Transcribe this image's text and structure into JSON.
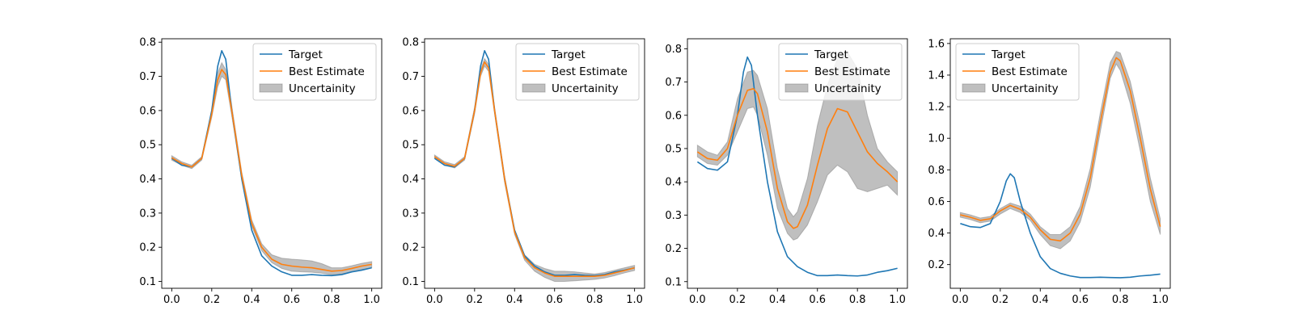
{
  "chart_data": [
    {
      "type": "line",
      "xlim": [
        -0.05,
        1.05
      ],
      "ylim": [
        0.08,
        0.81
      ],
      "xticks": [
        "0.0",
        "0.2",
        "0.4",
        "0.6",
        "0.8",
        "1.0"
      ],
      "yticks": [
        "0.1",
        "0.2",
        "0.3",
        "0.4",
        "0.5",
        "0.6",
        "0.7",
        "0.8"
      ],
      "legend": {
        "placement": "top-right",
        "entries": [
          "Target",
          "Best Estimate",
          "Uncertainity"
        ]
      },
      "series": [
        {
          "name": "Target",
          "color": "#1f77b4",
          "x": [
            0.0,
            0.05,
            0.1,
            0.15,
            0.2,
            0.23,
            0.25,
            0.27,
            0.3,
            0.35,
            0.4,
            0.45,
            0.5,
            0.55,
            0.6,
            0.65,
            0.7,
            0.75,
            0.8,
            0.85,
            0.9,
            0.95,
            1.0
          ],
          "y": [
            0.46,
            0.44,
            0.435,
            0.46,
            0.6,
            0.73,
            0.775,
            0.75,
            0.6,
            0.4,
            0.25,
            0.175,
            0.145,
            0.128,
            0.118,
            0.118,
            0.12,
            0.118,
            0.117,
            0.12,
            0.128,
            0.133,
            0.14
          ]
        },
        {
          "name": "Best Estimate",
          "color": "#ff7f0e",
          "x": [
            0.0,
            0.05,
            0.1,
            0.15,
            0.2,
            0.23,
            0.25,
            0.27,
            0.3,
            0.35,
            0.4,
            0.45,
            0.5,
            0.55,
            0.6,
            0.65,
            0.7,
            0.75,
            0.8,
            0.85,
            0.9,
            0.95,
            1.0
          ],
          "y": [
            0.462,
            0.445,
            0.435,
            0.46,
            0.59,
            0.69,
            0.72,
            0.705,
            0.6,
            0.41,
            0.27,
            0.2,
            0.165,
            0.15,
            0.145,
            0.142,
            0.14,
            0.135,
            0.13,
            0.132,
            0.138,
            0.145,
            0.15
          ],
          "lower": [
            0.455,
            0.44,
            0.43,
            0.455,
            0.58,
            0.67,
            0.7,
            0.69,
            0.585,
            0.4,
            0.262,
            0.19,
            0.155,
            0.138,
            0.13,
            0.128,
            0.127,
            0.124,
            0.12,
            0.122,
            0.128,
            0.135,
            0.14
          ],
          "upper": [
            0.468,
            0.45,
            0.44,
            0.465,
            0.6,
            0.71,
            0.74,
            0.72,
            0.615,
            0.42,
            0.28,
            0.21,
            0.178,
            0.168,
            0.165,
            0.163,
            0.16,
            0.152,
            0.14,
            0.14,
            0.146,
            0.153,
            0.158
          ]
        }
      ]
    },
    {
      "type": "line",
      "xlim": [
        -0.05,
        1.05
      ],
      "ylim": [
        0.08,
        0.81
      ],
      "xticks": [
        "0.0",
        "0.2",
        "0.4",
        "0.6",
        "0.8",
        "1.0"
      ],
      "yticks": [
        "0.1",
        "0.2",
        "0.3",
        "0.4",
        "0.5",
        "0.6",
        "0.7",
        "0.8"
      ],
      "legend": {
        "placement": "top-right",
        "entries": [
          "Target",
          "Best Estimate",
          "Uncertainity"
        ]
      },
      "series": [
        {
          "name": "Target",
          "color": "#1f77b4",
          "x": [
            0.0,
            0.05,
            0.1,
            0.15,
            0.2,
            0.23,
            0.25,
            0.27,
            0.3,
            0.35,
            0.4,
            0.45,
            0.5,
            0.55,
            0.6,
            0.65,
            0.7,
            0.75,
            0.8,
            0.85,
            0.9,
            0.95,
            1.0
          ],
          "y": [
            0.46,
            0.44,
            0.435,
            0.46,
            0.6,
            0.73,
            0.775,
            0.75,
            0.6,
            0.4,
            0.25,
            0.175,
            0.145,
            0.128,
            0.118,
            0.118,
            0.12,
            0.118,
            0.117,
            0.12,
            0.128,
            0.133,
            0.14
          ]
        },
        {
          "name": "Best Estimate",
          "color": "#ff7f0e",
          "x": [
            0.0,
            0.05,
            0.1,
            0.15,
            0.2,
            0.23,
            0.25,
            0.27,
            0.3,
            0.35,
            0.4,
            0.45,
            0.5,
            0.55,
            0.6,
            0.65,
            0.7,
            0.75,
            0.8,
            0.85,
            0.9,
            0.95,
            1.0
          ],
          "y": [
            0.465,
            0.445,
            0.437,
            0.46,
            0.6,
            0.71,
            0.742,
            0.725,
            0.6,
            0.4,
            0.245,
            0.17,
            0.14,
            0.125,
            0.115,
            0.115,
            0.115,
            0.115,
            0.115,
            0.118,
            0.125,
            0.132,
            0.14
          ],
          "lower": [
            0.46,
            0.44,
            0.432,
            0.455,
            0.59,
            0.7,
            0.73,
            0.715,
            0.59,
            0.39,
            0.238,
            0.162,
            0.13,
            0.112,
            0.1,
            0.1,
            0.102,
            0.104,
            0.106,
            0.11,
            0.117,
            0.125,
            0.132
          ],
          "upper": [
            0.47,
            0.45,
            0.442,
            0.465,
            0.61,
            0.72,
            0.752,
            0.735,
            0.61,
            0.41,
            0.252,
            0.178,
            0.15,
            0.138,
            0.13,
            0.13,
            0.128,
            0.125,
            0.122,
            0.126,
            0.133,
            0.14,
            0.147
          ]
        }
      ]
    },
    {
      "type": "line",
      "xlim": [
        -0.05,
        1.05
      ],
      "ylim": [
        0.08,
        0.83
      ],
      "xticks": [
        "0.0",
        "0.2",
        "0.4",
        "0.6",
        "0.8",
        "1.0"
      ],
      "yticks": [
        "0.1",
        "0.2",
        "0.3",
        "0.4",
        "0.5",
        "0.6",
        "0.7",
        "0.8"
      ],
      "legend": {
        "placement": "top-right",
        "entries": [
          "Target",
          "Best Estimate",
          "Uncertainity"
        ]
      },
      "series": [
        {
          "name": "Target",
          "color": "#1f77b4",
          "x": [
            0.0,
            0.05,
            0.1,
            0.15,
            0.2,
            0.23,
            0.25,
            0.27,
            0.3,
            0.35,
            0.4,
            0.45,
            0.5,
            0.55,
            0.6,
            0.65,
            0.7,
            0.75,
            0.8,
            0.85,
            0.9,
            0.95,
            1.0
          ],
          "y": [
            0.46,
            0.44,
            0.435,
            0.46,
            0.6,
            0.73,
            0.775,
            0.75,
            0.6,
            0.4,
            0.25,
            0.175,
            0.145,
            0.128,
            0.118,
            0.118,
            0.12,
            0.118,
            0.117,
            0.12,
            0.128,
            0.133,
            0.14
          ]
        },
        {
          "name": "Best Estimate",
          "color": "#ff7f0e",
          "x": [
            0.0,
            0.05,
            0.1,
            0.15,
            0.2,
            0.25,
            0.28,
            0.3,
            0.35,
            0.4,
            0.45,
            0.48,
            0.5,
            0.55,
            0.6,
            0.65,
            0.7,
            0.75,
            0.8,
            0.85,
            0.9,
            0.95,
            1.0
          ],
          "y": [
            0.49,
            0.47,
            0.465,
            0.5,
            0.6,
            0.675,
            0.68,
            0.665,
            0.55,
            0.38,
            0.28,
            0.26,
            0.265,
            0.33,
            0.45,
            0.56,
            0.62,
            0.61,
            0.55,
            0.49,
            0.455,
            0.43,
            0.4
          ],
          "lower": [
            0.475,
            0.455,
            0.45,
            0.48,
            0.55,
            0.62,
            0.625,
            0.6,
            0.48,
            0.32,
            0.245,
            0.225,
            0.23,
            0.27,
            0.34,
            0.42,
            0.45,
            0.43,
            0.38,
            0.37,
            0.38,
            0.39,
            0.36
          ],
          "upper": [
            0.51,
            0.49,
            0.48,
            0.52,
            0.65,
            0.73,
            0.735,
            0.72,
            0.62,
            0.44,
            0.32,
            0.295,
            0.31,
            0.41,
            0.57,
            0.69,
            0.77,
            0.79,
            0.74,
            0.6,
            0.5,
            0.46,
            0.43
          ]
        }
      ]
    },
    {
      "type": "line",
      "xlim": [
        -0.05,
        1.05
      ],
      "ylim": [
        0.05,
        1.63
      ],
      "xticks": [
        "0.0",
        "0.2",
        "0.4",
        "0.6",
        "0.8",
        "1.0"
      ],
      "yticks": [
        "0.2",
        "0.4",
        "0.6",
        "0.8",
        "1.0",
        "1.2",
        "1.4",
        "1.6"
      ],
      "legend": {
        "placement": "top-left",
        "entries": [
          "Target",
          "Best Estimate",
          "Uncertainity"
        ]
      },
      "series": [
        {
          "name": "Target",
          "color": "#1f77b4",
          "x": [
            0.0,
            0.05,
            0.1,
            0.15,
            0.2,
            0.23,
            0.25,
            0.27,
            0.3,
            0.35,
            0.4,
            0.45,
            0.5,
            0.55,
            0.6,
            0.65,
            0.7,
            0.75,
            0.8,
            0.85,
            0.9,
            0.95,
            1.0
          ],
          "y": [
            0.46,
            0.44,
            0.435,
            0.46,
            0.6,
            0.73,
            0.775,
            0.75,
            0.6,
            0.4,
            0.25,
            0.175,
            0.145,
            0.128,
            0.118,
            0.118,
            0.12,
            0.118,
            0.117,
            0.12,
            0.128,
            0.133,
            0.14
          ]
        },
        {
          "name": "Best Estimate",
          "color": "#ff7f0e",
          "x": [
            0.0,
            0.05,
            0.1,
            0.15,
            0.2,
            0.25,
            0.3,
            0.35,
            0.4,
            0.45,
            0.5,
            0.55,
            0.6,
            0.65,
            0.7,
            0.75,
            0.78,
            0.8,
            0.85,
            0.9,
            0.95,
            1.0
          ],
          "y": [
            0.515,
            0.5,
            0.48,
            0.49,
            0.54,
            0.575,
            0.55,
            0.5,
            0.42,
            0.36,
            0.35,
            0.4,
            0.52,
            0.75,
            1.1,
            1.42,
            1.51,
            1.49,
            1.3,
            1.0,
            0.68,
            0.44
          ],
          "lower": [
            0.5,
            0.485,
            0.465,
            0.475,
            0.52,
            0.555,
            0.53,
            0.48,
            0.39,
            0.32,
            0.3,
            0.35,
            0.47,
            0.69,
            1.04,
            1.38,
            1.47,
            1.43,
            1.22,
            0.92,
            0.6,
            0.39
          ],
          "upper": [
            0.53,
            0.515,
            0.495,
            0.505,
            0.555,
            0.59,
            0.57,
            0.52,
            0.44,
            0.39,
            0.39,
            0.44,
            0.57,
            0.81,
            1.16,
            1.48,
            1.55,
            1.54,
            1.36,
            1.08,
            0.75,
            0.49
          ]
        }
      ]
    }
  ]
}
